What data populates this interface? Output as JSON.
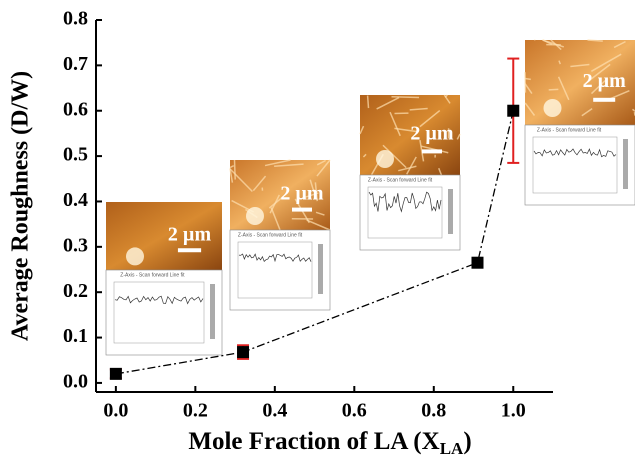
{
  "chart_data": {
    "type": "errorbar",
    "y_label": "Average Roughness (D/W)",
    "x_label": [
      "Mole Fraction of LA (X",
      "LA",
      ")"
    ],
    "x": [
      0.0,
      0.32,
      0.91,
      1.0
    ],
    "series": [
      {
        "color": "#000000",
        "error_color": "#e02020",
        "values": [
          0.02,
          0.068,
          0.265,
          0.6
        ],
        "errors": [
          0.01,
          0.015,
          0.01,
          0.115
        ]
      }
    ],
    "xlim": [
      -0.05,
      1.1
    ],
    "ylim": [
      -0.02,
      0.8
    ],
    "xticks": [
      {
        "value": 0.0,
        "label": "0.0"
      },
      {
        "value": 0.2,
        "label": "0.2"
      },
      {
        "value": 0.4,
        "label": "0.4"
      },
      {
        "value": 0.6,
        "label": "0.6"
      },
      {
        "value": 0.8,
        "label": "0.8"
      },
      {
        "value": 1.0,
        "label": "1.0"
      }
    ],
    "yticks": [
      {
        "value": 0.0,
        "label": "0.0"
      },
      {
        "value": 0.1,
        "label": "0.1"
      },
      {
        "value": 0.2,
        "label": "0.2"
      },
      {
        "value": 0.3,
        "label": "0.3"
      },
      {
        "value": 0.4,
        "label": "0.4"
      },
      {
        "value": 0.5,
        "label": "0.5"
      },
      {
        "value": 0.6,
        "label": "0.6"
      },
      {
        "value": 0.7,
        "label": "0.7"
      },
      {
        "value": 0.8,
        "label": "0.8"
      }
    ],
    "insets": [
      {
        "label": "2 µm",
        "caption": "Z-Axis - Scan forward   Line fit"
      },
      {
        "label": "2 µm",
        "caption": "Z-Axis - Scan forward   Line fit"
      },
      {
        "label": "2 µm",
        "caption": "Z-Axis - Scan forward   Line fit"
      },
      {
        "label": "2 µm",
        "caption": "Z-Axis - Scan forward   Line fit"
      }
    ]
  }
}
